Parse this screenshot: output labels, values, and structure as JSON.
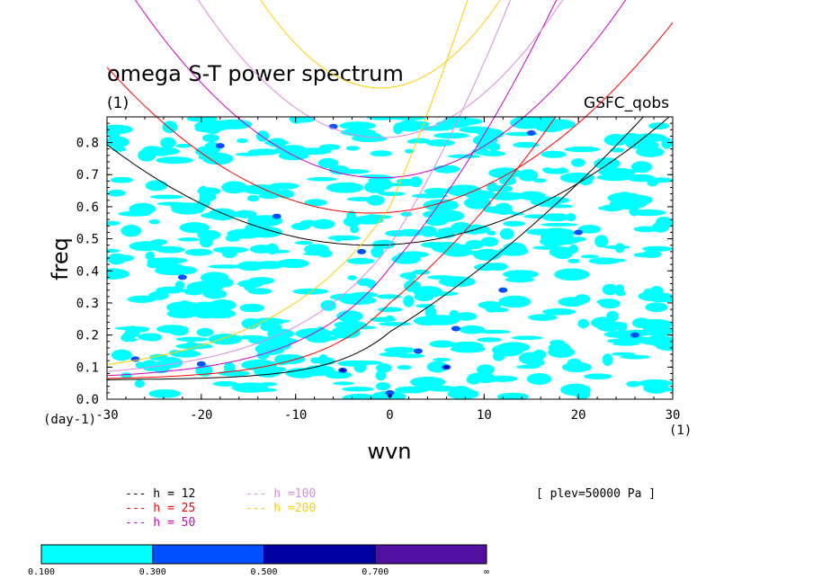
{
  "chart_data": {
    "type": "contour",
    "title": "omega S-T power spectrum",
    "subtitle": "(1)",
    "source_label": "GSFC_qobs",
    "xlabel": "wvn",
    "ylabel": "freq",
    "x_unit_label": "(1)",
    "y_unit_label": "(day-1)",
    "xlim": [
      -30,
      30
    ],
    "ylim": [
      0,
      0.88
    ],
    "xticks": [
      -30,
      -20,
      -10,
      0,
      10,
      20,
      30
    ],
    "yticks": [
      0.0,
      0.1,
      0.2,
      0.3,
      0.4,
      0.5,
      0.6,
      0.7,
      0.8
    ],
    "ytick_labels": [
      "0.0",
      "0.1",
      "0.2",
      "0.3",
      "0.4",
      "0.5",
      "0.6",
      "0.7",
      "0.8"
    ],
    "annotation": "[ plev=50000 Pa ]",
    "dispersion_curves": [
      {
        "name": "h = 12",
        "color": "#000000",
        "sym_x0": -2,
        "sym_y0": 0.48,
        "sym_a": 0.0004,
        "kelvin_y0": 0.21,
        "kelvin_x0": 0,
        "kelvin_slope": 0.0182
      },
      {
        "name": "h = 25",
        "color": "#ff0000",
        "sym_x0": -2,
        "sym_y0": 0.58,
        "sym_a": 0.00058,
        "kelvin_y0": 0.3,
        "kelvin_x0": 0,
        "kelvin_slope": 0.0242
      },
      {
        "name": "h = 50",
        "color": "#cc00cc",
        "sym_x0": -1,
        "sym_y0": 0.69,
        "sym_a": 0.00082,
        "kelvin_y0": 0.41,
        "kelvin_x0": 0,
        "kelvin_slope": 0.034
      },
      {
        "name": "h =100",
        "color": "#dd88dd",
        "sym_x0": -1,
        "sym_y0": 0.815,
        "sym_a": 0.00115,
        "kelvin_y0": 0.48,
        "kelvin_x0": 0,
        "kelvin_slope": 0.047
      },
      {
        "name": "h =200",
        "color": "#ffcc00",
        "sym_x0": -1,
        "sym_y0": 0.97,
        "sym_a": 0.0017,
        "kelvin_y0": 0.6,
        "kelvin_x0": 0,
        "kelvin_slope": 0.068
      }
    ],
    "colorbar": {
      "levels": [
        "0.100",
        "0.300",
        "0.500",
        "0.700",
        "∞"
      ],
      "colors": [
        "#00ffff",
        "#0050ff",
        "#0000a0",
        "#5010a0"
      ]
    }
  }
}
